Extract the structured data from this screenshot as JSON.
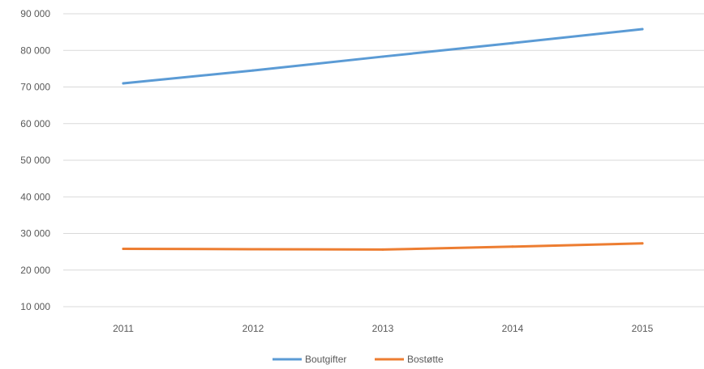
{
  "chart_data": {
    "type": "line",
    "categories": [
      "2011",
      "2012",
      "2013",
      "2014",
      "2015"
    ],
    "series": [
      {
        "name": "Boutgifter",
        "color": "#5b9bd5",
        "values": [
          71000,
          74500,
          78300,
          82000,
          85800
        ]
      },
      {
        "name": "Bostøtte",
        "color": "#ed7d31",
        "values": [
          25800,
          25700,
          25600,
          26400,
          27300
        ]
      }
    ],
    "y_ticks": [
      "10 000",
      "20 000",
      "30 000",
      "40 000",
      "50 000",
      "60 000",
      "70 000",
      "80 000",
      "90 000"
    ],
    "ylim": [
      10000,
      90000
    ],
    "grid": true,
    "legend_position": "bottom"
  }
}
